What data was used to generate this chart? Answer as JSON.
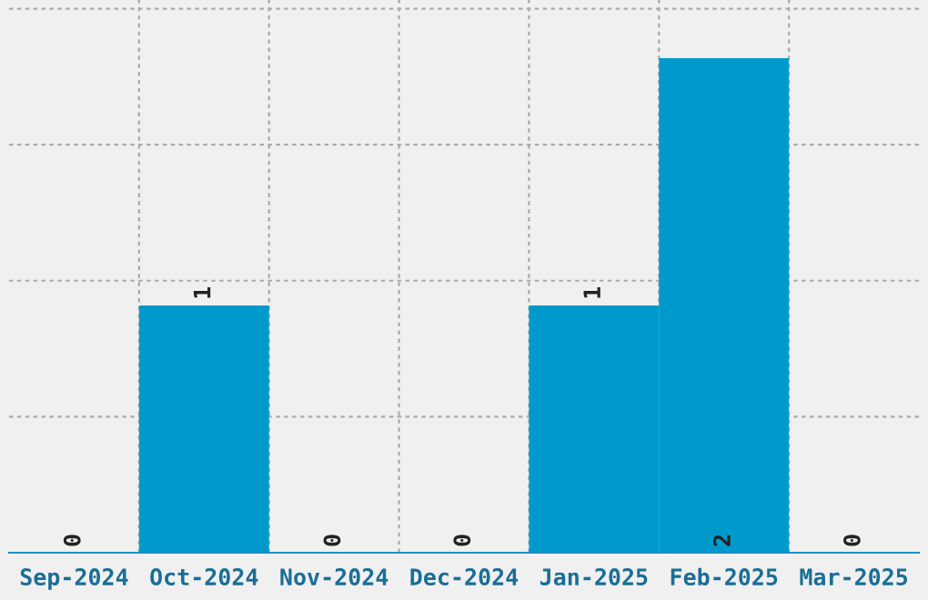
{
  "chart_data": {
    "type": "bar",
    "categories": [
      "Sep-2024",
      "Oct-2024",
      "Nov-2024",
      "Dec-2024",
      "Jan-2025",
      "Feb-2025",
      "Mar-2025"
    ],
    "values": [
      0,
      1,
      0,
      0,
      1,
      2,
      0
    ],
    "color": "#0099cc",
    "data_labels": true,
    "ylim": [
      0,
      2.235
    ],
    "yticks": [
      {
        "value": 0.55,
        "label": null
      },
      {
        "value": 1.1,
        "label": null
      },
      {
        "value": 1.65,
        "label": null
      },
      {
        "value": 2.2,
        "label": null
      }
    ],
    "tick_labels": "x",
    "grid": true
  }
}
